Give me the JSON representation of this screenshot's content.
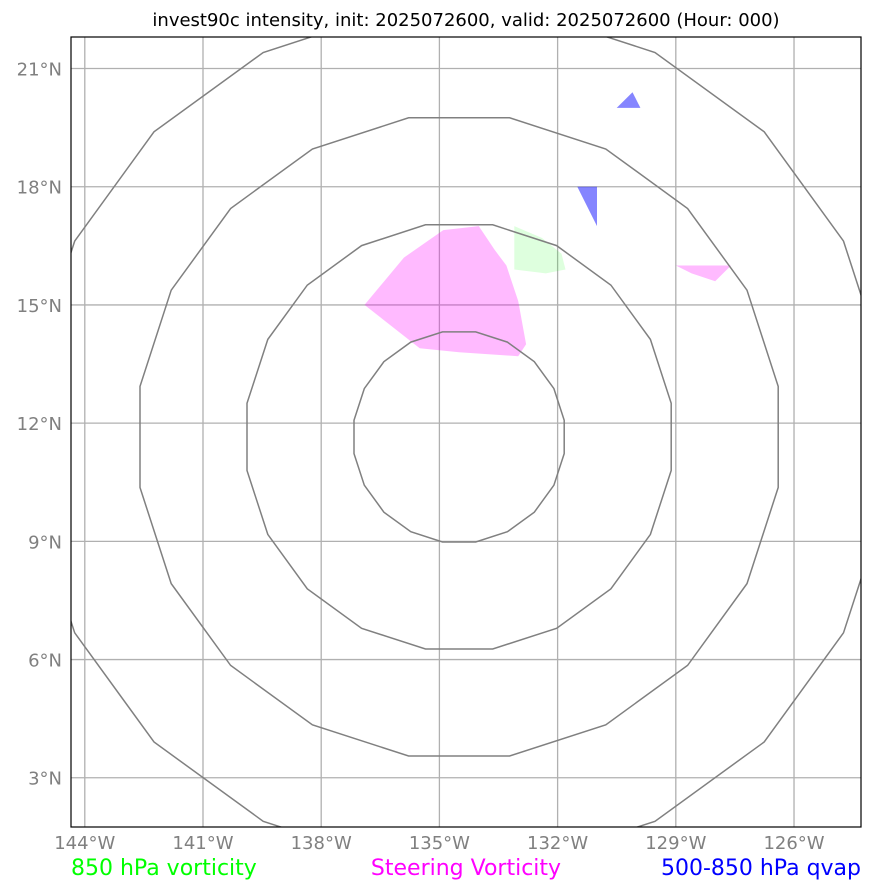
{
  "title": "invest90c intensity, init: 2025072600, valid: 2025072600 (Hour: 000)",
  "map": {
    "lon_range": [
      -144.35,
      -124.3
    ],
    "lat_range": [
      1.75,
      21.8
    ],
    "lon_ticks": [
      {
        "value": -144,
        "label": "144°W"
      },
      {
        "value": -141,
        "label": "141°W"
      },
      {
        "value": -138,
        "label": "138°W"
      },
      {
        "value": -135,
        "label": "135°W"
      },
      {
        "value": -132,
        "label": "132°W"
      },
      {
        "value": -129,
        "label": "129°W"
      },
      {
        "value": -126,
        "label": "126°W"
      }
    ],
    "lat_ticks": [
      {
        "value": 21,
        "label": "21°N"
      },
      {
        "value": 18,
        "label": "18°N"
      },
      {
        "value": 15,
        "label": "15°N"
      },
      {
        "value": 12,
        "label": "12°N"
      },
      {
        "value": 9,
        "label": "9°N"
      },
      {
        "value": 6,
        "label": "6°N"
      },
      {
        "value": 3,
        "label": "3°N"
      }
    ],
    "grid_color": "#b0b0b0",
    "ring_color": "#808080",
    "ring_center": {
      "lon": -134.5,
      "lat": 11.65
    },
    "ring_radii_deg": [
      2.7,
      5.45,
      8.2,
      10.95
    ]
  },
  "shapes": [
    {
      "name": "steering-vorticity-area",
      "color": "#ff00ff",
      "opacity": 0.27,
      "points": [
        [
          -136.9,
          15.0
        ],
        [
          -135.9,
          16.2
        ],
        [
          -134.9,
          16.9
        ],
        [
          -134.0,
          17.0
        ],
        [
          -133.6,
          16.4
        ],
        [
          -133.3,
          16.0
        ],
        [
          -133.0,
          15.1
        ],
        [
          -132.8,
          14.0
        ],
        [
          -133.0,
          13.7
        ],
        [
          -134.5,
          13.8
        ],
        [
          -135.5,
          13.9
        ]
      ]
    },
    {
      "name": "vorticity-850-area",
      "color": "#00ff00",
      "opacity": 0.13,
      "points": [
        [
          -133.1,
          17.0
        ],
        [
          -132.4,
          16.7
        ],
        [
          -131.9,
          16.3
        ],
        [
          -131.8,
          15.9
        ],
        [
          -132.3,
          15.8
        ],
        [
          -133.1,
          15.9
        ]
      ]
    },
    {
      "name": "vorticity-850-area",
      "color": "#ff00ff",
      "opacity": 0.27,
      "points": [
        [
          -129.0,
          16.0
        ],
        [
          -127.6,
          16.0
        ],
        [
          -128.0,
          15.6
        ],
        [
          -128.6,
          15.8
        ]
      ]
    },
    {
      "name": "qvap-500-850-area",
      "color": "#0000ff",
      "opacity": 0.48,
      "points": [
        [
          -131.5,
          18.0
        ],
        [
          -131.0,
          18.0
        ],
        [
          -131.0,
          17.0
        ]
      ]
    },
    {
      "name": "qvap-500-850-area",
      "color": "#0000ff",
      "opacity": 0.48,
      "points": [
        [
          -130.5,
          20.0
        ],
        [
          -130.1,
          20.4
        ],
        [
          -129.9,
          20.0
        ]
      ]
    }
  ],
  "legend": [
    {
      "label": "850 hPa vorticity",
      "color": "#00ff00"
    },
    {
      "label": "Steering Vorticity",
      "color": "#ff00ff"
    },
    {
      "label": "500-850 hPa qvap",
      "color": "#0000ff"
    }
  ]
}
